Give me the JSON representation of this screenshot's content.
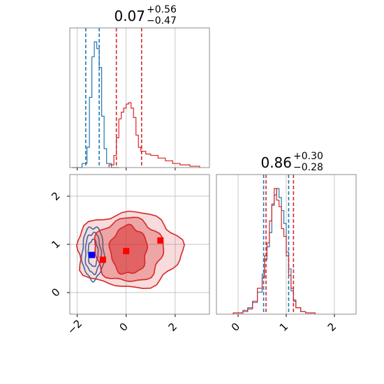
{
  "chart_data": [
    {
      "type": "histogram",
      "panel": "top-left",
      "title": {
        "value": "0.07",
        "plus": "+0.56",
        "minus": "−0.47"
      },
      "xlim": [
        -2.3,
        3.4
      ],
      "xticks": [
        -2,
        0,
        2
      ],
      "grid": true,
      "series": [
        {
          "color": "#1f77b4",
          "bin_edges": [
            -2.2,
            -1.8,
            -1.6,
            -1.5,
            -1.4,
            -1.3,
            -1.2,
            -1.1,
            -1.0,
            -0.9,
            -0.8,
            -0.6,
            -0.3
          ],
          "heights": [
            0.0,
            0.03,
            0.15,
            0.52,
            0.82,
            0.93,
            0.88,
            0.74,
            0.38,
            0.14,
            0.03,
            0.0
          ],
          "quantiles": [
            -1.65,
            -1.1
          ]
        },
        {
          "color": "#d62728",
          "bin_edges": [
            -0.7,
            -0.5,
            -0.4,
            -0.3,
            -0.2,
            -0.1,
            0.0,
            0.1,
            0.2,
            0.3,
            0.4,
            0.5,
            0.6,
            0.8,
            1.0,
            1.3,
            1.6,
            1.9,
            2.2,
            2.6,
            3.0
          ],
          "heights": [
            0.02,
            0.09,
            0.22,
            0.36,
            0.41,
            0.44,
            0.47,
            0.48,
            0.44,
            0.37,
            0.24,
            0.15,
            0.12,
            0.1,
            0.09,
            0.07,
            0.05,
            0.03,
            0.02,
            0.01
          ],
          "quantiles": [
            -0.4,
            0.63
          ]
        }
      ]
    },
    {
      "type": "contour",
      "panel": "bottom-left",
      "xlim": [
        -2.3,
        3.4
      ],
      "ylim": [
        -0.45,
        2.45
      ],
      "xticks": [
        -2,
        0,
        2
      ],
      "yticks": [
        0,
        1,
        2
      ],
      "grid": true,
      "series": [
        {
          "color": "#1f77b4",
          "center": [
            -1.35,
            0.82
          ],
          "filled": false,
          "levels": [
            {
              "rx": 0.2,
              "ry": 0.28
            },
            {
              "rx": 0.32,
              "ry": 0.42
            },
            {
              "rx": 0.45,
              "ry": 0.55
            }
          ]
        },
        {
          "color": "#d62728",
          "center": [
            0.1,
            0.88
          ],
          "filled": true,
          "levels": [
            {
              "rx": 0.75,
              "ry": 0.5
            },
            {
              "rx": 1.4,
              "ry": 0.66
            },
            {
              "rx": 2.15,
              "ry": 0.78
            }
          ]
        }
      ],
      "markers": [
        {
          "x": -1.4,
          "y": 0.78,
          "color": "#0000ff"
        },
        {
          "x": -0.95,
          "y": 0.68,
          "color": "#ff0000"
        },
        {
          "x": 0.0,
          "y": 0.86,
          "color": "#ff0000"
        },
        {
          "x": 1.4,
          "y": 1.08,
          "color": "#ff0000"
        }
      ]
    },
    {
      "type": "histogram",
      "panel": "bottom-right",
      "title": {
        "value": "0.86",
        "plus": "+0.30",
        "minus": "−0.28"
      },
      "xlim": [
        -0.45,
        2.45
      ],
      "xticks": [
        0,
        1,
        2
      ],
      "grid": true,
      "series": [
        {
          "color": "#1f77b4",
          "bin_edges": [
            -0.1,
            0.1,
            0.2,
            0.3,
            0.4,
            0.5,
            0.55,
            0.6,
            0.65,
            0.7,
            0.75,
            0.8,
            0.85,
            0.9,
            0.95,
            1.0,
            1.05,
            1.1,
            1.15,
            1.2,
            1.3,
            1.4,
            1.6
          ],
          "heights": [
            0.01,
            0.03,
            0.05,
            0.09,
            0.17,
            0.31,
            0.42,
            0.52,
            0.63,
            0.84,
            0.92,
            0.97,
            0.9,
            0.8,
            0.7,
            0.48,
            0.35,
            0.18,
            0.11,
            0.05,
            0.02,
            0.01
          ],
          "quantiles": [
            0.53,
            1.05
          ]
        },
        {
          "color": "#d62728",
          "bin_edges": [
            -0.1,
            0.1,
            0.2,
            0.3,
            0.4,
            0.5,
            0.55,
            0.6,
            0.65,
            0.7,
            0.75,
            0.8,
            0.85,
            0.9,
            0.95,
            1.0,
            1.05,
            1.1,
            1.15,
            1.2,
            1.3,
            1.4,
            1.6
          ],
          "heights": [
            0.01,
            0.02,
            0.04,
            0.1,
            0.2,
            0.28,
            0.45,
            0.55,
            0.72,
            0.85,
            0.97,
            0.88,
            0.83,
            0.66,
            0.6,
            0.45,
            0.3,
            0.2,
            0.1,
            0.05,
            0.02,
            0.01
          ],
          "quantiles": [
            0.58,
            1.15
          ]
        }
      ]
    }
  ]
}
